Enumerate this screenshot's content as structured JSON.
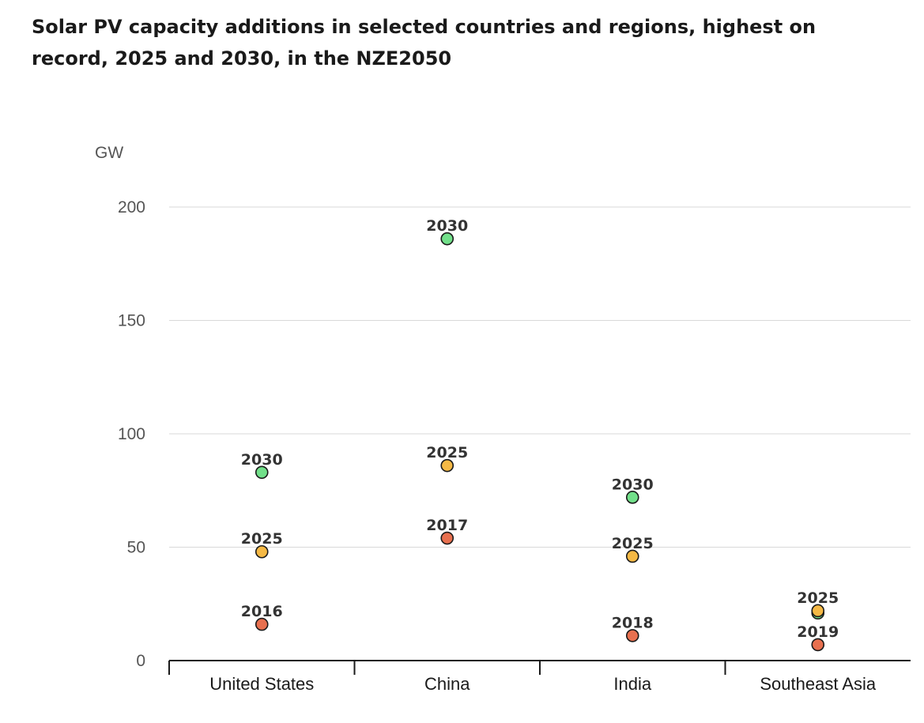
{
  "title": "Solar PV capacity additions in selected countries and regions, highest on record, 2025 and 2030, in the NZE2050",
  "chart_data": {
    "type": "scatter",
    "title": "Solar PV capacity additions in selected countries and regions, highest on record, 2025 and 2030, in the NZE2050",
    "ylabel": "GW",
    "xlabel": "",
    "ylim": [
      0,
      200
    ],
    "yticks": [
      0,
      50,
      100,
      150,
      200
    ],
    "grid": true,
    "categories": [
      "United States",
      "China",
      "India",
      "Southeast Asia"
    ],
    "series": [
      {
        "color": "#e8704f",
        "values": [
          16,
          54,
          11,
          7
        ],
        "labels": [
          "2016",
          "2017",
          "2018",
          "2019"
        ]
      },
      {
        "color": "#f5b945",
        "values": [
          48,
          86,
          46,
          22
        ],
        "labels": [
          "2025",
          "2025",
          "2025",
          "2025"
        ]
      },
      {
        "color": "#72e08a",
        "values": [
          83,
          186,
          72,
          21
        ],
        "labels": [
          "2030",
          "2030",
          "2030",
          ""
        ]
      }
    ]
  }
}
